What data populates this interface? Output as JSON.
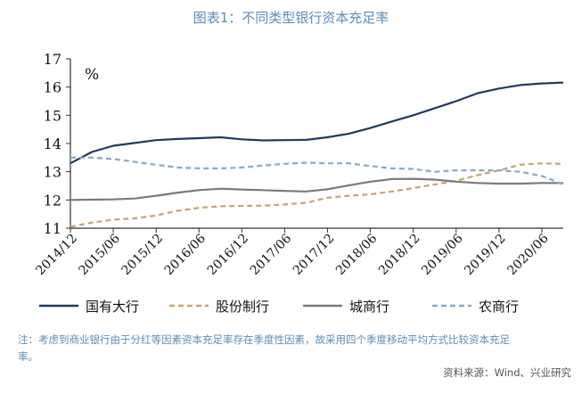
{
  "title": "图表1：不同类型银行资本充足率",
  "note": "注：考虑到商业银行由于分红等因素资本充足率存在季度性因素，故采用四个季度移动平均方式比较资本充足率。",
  "source": "资料来源：Wind、兴业研究",
  "chart_data": {
    "type": "line",
    "title": "图表1：不同类型银行资本充足率",
    "unit_label": "%",
    "xlabel": "",
    "ylabel": "%",
    "ylim": [
      11,
      17
    ],
    "yticks": [
      11,
      12,
      13,
      14,
      15,
      16,
      17
    ],
    "x": [
      "2014/12",
      "2015/03",
      "2015/06",
      "2015/09",
      "2015/12",
      "2016/03",
      "2016/06",
      "2016/09",
      "2016/12",
      "2017/03",
      "2017/06",
      "2017/09",
      "2017/12",
      "2018/03",
      "2018/06",
      "2018/09",
      "2018/12",
      "2019/03",
      "2019/06",
      "2019/09",
      "2019/12",
      "2020/03",
      "2020/06",
      "2020/09"
    ],
    "xticks": [
      "2014/12",
      "2015/06",
      "2015/12",
      "2016/06",
      "2016/12",
      "2017/06",
      "2017/12",
      "2018/06",
      "2018/12",
      "2019/06",
      "2019/12",
      "2020/06"
    ],
    "grid": false,
    "legend_position": "bottom",
    "series": [
      {
        "name": "国有大行",
        "color": "#1f3b5c",
        "style": "solid",
        "values": [
          13.3,
          13.7,
          13.92,
          14.02,
          14.12,
          14.16,
          14.19,
          14.22,
          14.15,
          14.11,
          14.12,
          14.13,
          14.22,
          14.35,
          14.55,
          14.78,
          15.0,
          15.25,
          15.5,
          15.78,
          15.95,
          16.07,
          16.13,
          16.16
        ]
      },
      {
        "name": "股份制行",
        "color": "#c8a373",
        "style": "dashed",
        "values": [
          11.05,
          11.2,
          11.3,
          11.35,
          11.45,
          11.62,
          11.72,
          11.78,
          11.79,
          11.8,
          11.84,
          11.9,
          12.08,
          12.15,
          12.2,
          12.3,
          12.42,
          12.55,
          12.68,
          12.88,
          13.05,
          13.25,
          13.3,
          13.28
        ]
      },
      {
        "name": "城商行",
        "color": "#7a7a7a",
        "style": "solid",
        "values": [
          12.0,
          12.01,
          12.02,
          12.05,
          12.15,
          12.26,
          12.35,
          12.4,
          12.37,
          12.35,
          12.32,
          12.3,
          12.38,
          12.52,
          12.65,
          12.74,
          12.75,
          12.72,
          12.65,
          12.6,
          12.58,
          12.58,
          12.6,
          12.6
        ]
      },
      {
        "name": "农商行",
        "color": "#8aa8c8",
        "style": "dashed",
        "values": [
          13.5,
          13.5,
          13.45,
          13.35,
          13.25,
          13.15,
          13.12,
          13.12,
          13.15,
          13.22,
          13.28,
          13.32,
          13.3,
          13.3,
          13.2,
          13.12,
          13.1,
          13.0,
          13.05,
          13.05,
          13.05,
          13.0,
          12.85,
          12.55
        ]
      }
    ]
  }
}
